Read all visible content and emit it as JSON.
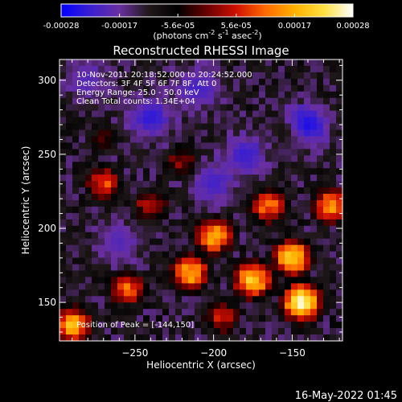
{
  "colorbar": {
    "tick_labels": [
      "-0.00028",
      "-0.00017",
      "-5.6e-05",
      "5.6e-05",
      "0.00017",
      "0.00028"
    ],
    "range": [
      -0.00028,
      0.00028
    ],
    "unit_label_main": "(photons cm",
    "unit_label_sup1": "-2",
    "unit_label_mid": " s",
    "unit_label_sup2": "-1",
    "unit_label_end": " asec",
    "unit_label_sup3": "-2",
    "unit_label_close": ")",
    "colormap": [
      "#0000ff",
      "#3a1fd0",
      "#6a2fa0",
      "#20181a",
      "#000000",
      "#6a0000",
      "#d01000",
      "#ff6a00",
      "#ffb000",
      "#ffe040",
      "#ffffff"
    ]
  },
  "chart_data": {
    "type": "heatmap",
    "title": "Reconstructed RHESSI Image",
    "xlabel": "Heliocentric X (arcsec)",
    "ylabel": "Heliocentric Y (arcsec)",
    "xlim": [
      -298,
      -118
    ],
    "ylim": [
      124,
      314
    ],
    "x_ticks": [
      -250,
      -200,
      -150
    ],
    "y_ticks": [
      150,
      200,
      250,
      300
    ],
    "annotations": [
      "10-Nov-2011 20:18:52.000 to 20:24:52.000",
      "Detectors: 3F 4F 5F 6F 7F 8F, Att 0",
      "Energy Range: 25.0 - 50.0 keV",
      "Clean     Total counts: 1.34E+04"
    ],
    "peak_label": "Position of Peak = [-144,150]",
    "peak_position": [
      -144,
      150
    ],
    "bright_regions": [
      {
        "x": -144,
        "y": 150,
        "level": 0.95
      },
      {
        "x": -175,
        "y": 165,
        "level": 0.85
      },
      {
        "x": -200,
        "y": 195,
        "level": 0.8
      },
      {
        "x": -215,
        "y": 170,
        "level": 0.8
      },
      {
        "x": -150,
        "y": 180,
        "level": 0.85
      },
      {
        "x": -125,
        "y": 215,
        "level": 0.75
      },
      {
        "x": -165,
        "y": 215,
        "level": 0.7
      },
      {
        "x": -255,
        "y": 160,
        "level": 0.7
      },
      {
        "x": -270,
        "y": 230,
        "level": 0.65
      },
      {
        "x": -240,
        "y": 215,
        "level": 0.6
      },
      {
        "x": -290,
        "y": 135,
        "level": 0.8
      },
      {
        "x": -220,
        "y": 245,
        "level": 0.55
      },
      {
        "x": -150,
        "y": 265,
        "level": 0.45
      },
      {
        "x": -270,
        "y": 260,
        "level": 0.45
      },
      {
        "x": -195,
        "y": 140,
        "level": 0.6
      }
    ],
    "dim_regions": [
      {
        "x": -140,
        "y": 270,
        "level": 0.05
      },
      {
        "x": -240,
        "y": 275,
        "level": 0.08
      },
      {
        "x": -200,
        "y": 230,
        "level": 0.12
      },
      {
        "x": -180,
        "y": 250,
        "level": 0.1
      },
      {
        "x": -260,
        "y": 190,
        "level": 0.15
      },
      {
        "x": -280,
        "y": 300,
        "level": 0.15
      },
      {
        "x": -210,
        "y": 295,
        "level": 0.12
      }
    ]
  },
  "footer": {
    "timestamp": "16-May-2022 01:45"
  }
}
